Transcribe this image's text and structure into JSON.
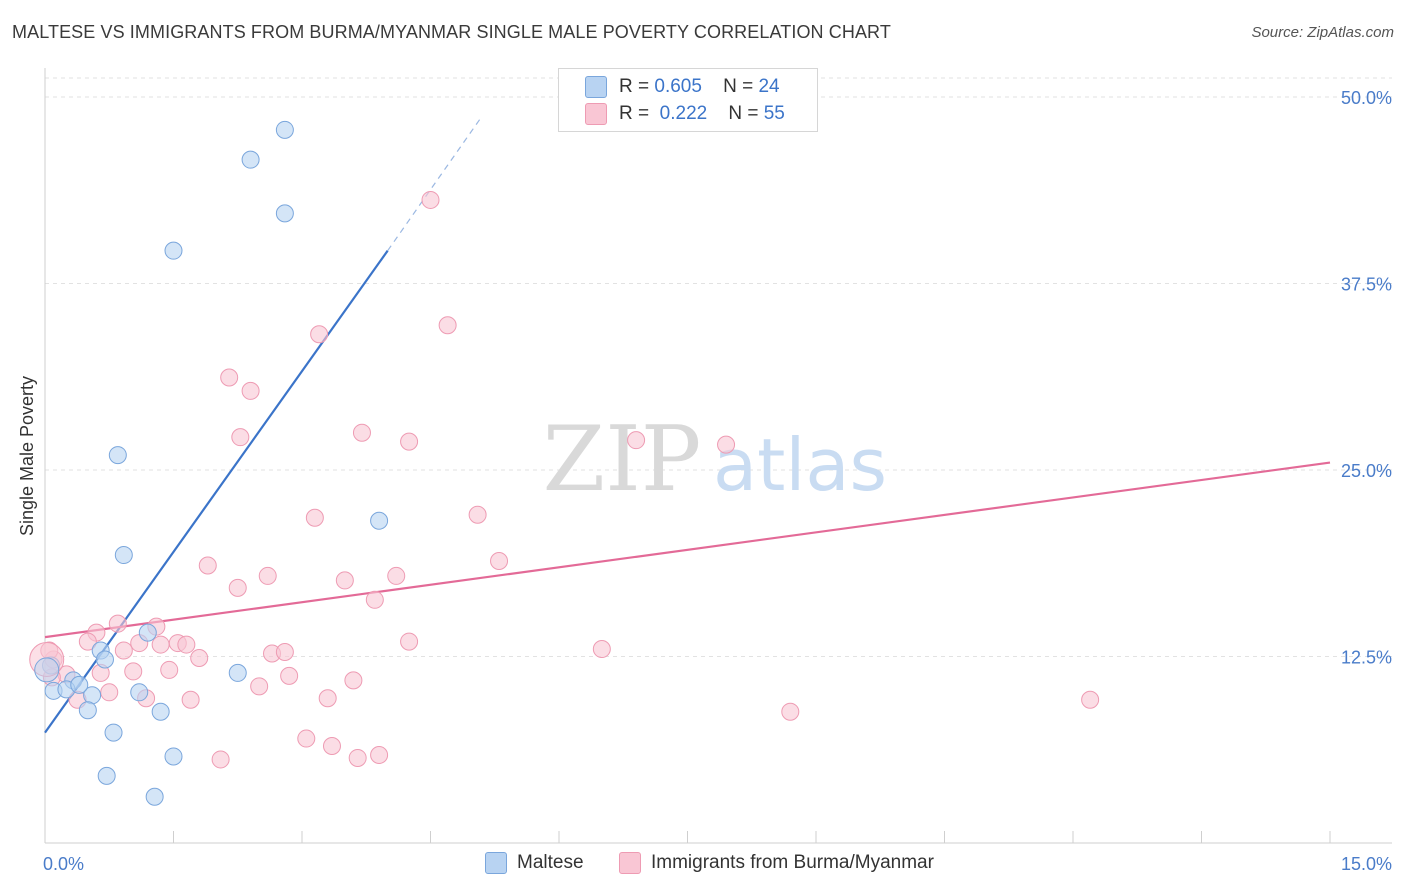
{
  "title": "MALTESE VS IMMIGRANTS FROM BURMA/MYANMAR SINGLE MALE POVERTY CORRELATION CHART",
  "source": "Source: ZipAtlas.com",
  "watermark": {
    "zip": "ZIP",
    "atlas": "atlas"
  },
  "legend": {
    "rows": [
      {
        "r_label": "R =",
        "r_value": "0.605",
        "n_label": "N =",
        "n_value": "24",
        "fill": "#b8d3f2",
        "stroke": "#7aa6dc"
      },
      {
        "r_label": "R =",
        "r_value": "0.222",
        "n_label": "N =",
        "n_value": "55",
        "fill": "#f9c6d4",
        "stroke": "#ee9bb3"
      }
    ]
  },
  "bottom_legend": {
    "series1": "Maltese",
    "series2": "Immigrants from Burma/Myanmar"
  },
  "chart_data": {
    "type": "scatter",
    "title": "MALTESE VS IMMIGRANTS FROM BURMA/MYANMAR SINGLE MALE POVERTY CORRELATION CHART",
    "xlabel": "",
    "ylabel": "Single Male Poverty",
    "xlim": [
      0,
      15
    ],
    "ylim": [
      0,
      50
    ],
    "x_tick_labels": [
      "0.0%",
      "15.0%"
    ],
    "y_ticks": [
      12.5,
      25.0,
      37.5,
      50.0
    ],
    "y_tick_labels": [
      "12.5%",
      "25.0%",
      "37.5%",
      "50.0%"
    ],
    "grid": true,
    "series": [
      {
        "name": "Maltese",
        "color": "#3b74c9",
        "fill": "#b8d3f2",
        "stroke": "#7aa6dc",
        "R": 0.605,
        "N": 24,
        "trend": {
          "x": [
            0,
            4.0
          ],
          "y": [
            7.4,
            39.7
          ],
          "dashed_to": [
            5.1,
            48.7
          ]
        },
        "points": [
          [
            2.8,
            47.8
          ],
          [
            2.4,
            45.8
          ],
          [
            2.8,
            42.2
          ],
          [
            1.5,
            39.7
          ],
          [
            0.85,
            26.0
          ],
          [
            0.92,
            19.3
          ],
          [
            3.9,
            21.6
          ],
          [
            1.2,
            14.1
          ],
          [
            0.65,
            12.9
          ],
          [
            0.7,
            12.3
          ],
          [
            0.33,
            10.9
          ],
          [
            0.1,
            10.2
          ],
          [
            0.25,
            10.3
          ],
          [
            0.55,
            9.9
          ],
          [
            0.07,
            11.9
          ],
          [
            1.1,
            10.1
          ],
          [
            0.5,
            8.9
          ],
          [
            0.4,
            10.6
          ],
          [
            1.35,
            8.8
          ],
          [
            2.25,
            11.4
          ],
          [
            0.8,
            7.4
          ],
          [
            1.5,
            5.8
          ],
          [
            0.72,
            4.5
          ],
          [
            1.28,
            3.1
          ]
        ]
      },
      {
        "name": "Immigrants from Burma/Myanmar",
        "color": "#e36a97",
        "fill": "#f9c6d4",
        "stroke": "#ee9bb3",
        "R": 0.222,
        "N": 55,
        "trend": {
          "x": [
            0,
            15
          ],
          "y": [
            13.8,
            25.5
          ]
        },
        "points": [
          [
            4.5,
            43.1
          ],
          [
            4.7,
            34.7
          ],
          [
            3.2,
            34.1
          ],
          [
            2.15,
            31.2
          ],
          [
            2.4,
            30.3
          ],
          [
            3.7,
            27.5
          ],
          [
            4.25,
            26.9
          ],
          [
            2.28,
            27.2
          ],
          [
            6.9,
            27.0
          ],
          [
            7.95,
            26.7
          ],
          [
            5.05,
            22.0
          ],
          [
            3.15,
            21.8
          ],
          [
            5.3,
            18.9
          ],
          [
            1.9,
            18.6
          ],
          [
            2.6,
            17.9
          ],
          [
            4.1,
            17.9
          ],
          [
            3.5,
            17.6
          ],
          [
            2.25,
            17.1
          ],
          [
            3.85,
            16.3
          ],
          [
            0.85,
            14.7
          ],
          [
            1.3,
            14.5
          ],
          [
            0.6,
            14.1
          ],
          [
            0.5,
            13.5
          ],
          [
            1.1,
            13.4
          ],
          [
            1.35,
            13.3
          ],
          [
            1.55,
            13.4
          ],
          [
            1.65,
            13.3
          ],
          [
            0.92,
            12.9
          ],
          [
            4.25,
            13.5
          ],
          [
            6.5,
            13.0
          ],
          [
            2.65,
            12.7
          ],
          [
            2.8,
            12.8
          ],
          [
            1.8,
            12.4
          ],
          [
            0.25,
            11.3
          ],
          [
            0.08,
            11.1
          ],
          [
            0.65,
            11.4
          ],
          [
            1.03,
            11.5
          ],
          [
            1.45,
            11.6
          ],
          [
            2.85,
            11.2
          ],
          [
            3.6,
            10.9
          ],
          [
            2.5,
            10.5
          ],
          [
            0.75,
            10.1
          ],
          [
            1.18,
            9.7
          ],
          [
            1.7,
            9.6
          ],
          [
            3.3,
            9.7
          ],
          [
            0.38,
            9.6
          ],
          [
            8.7,
            8.8
          ],
          [
            12.2,
            9.6
          ],
          [
            3.05,
            7.0
          ],
          [
            3.35,
            6.5
          ],
          [
            2.05,
            5.6
          ],
          [
            3.65,
            5.7
          ],
          [
            3.9,
            5.9
          ],
          [
            0.1,
            12.3
          ],
          [
            0.05,
            12.9
          ]
        ]
      }
    ]
  }
}
